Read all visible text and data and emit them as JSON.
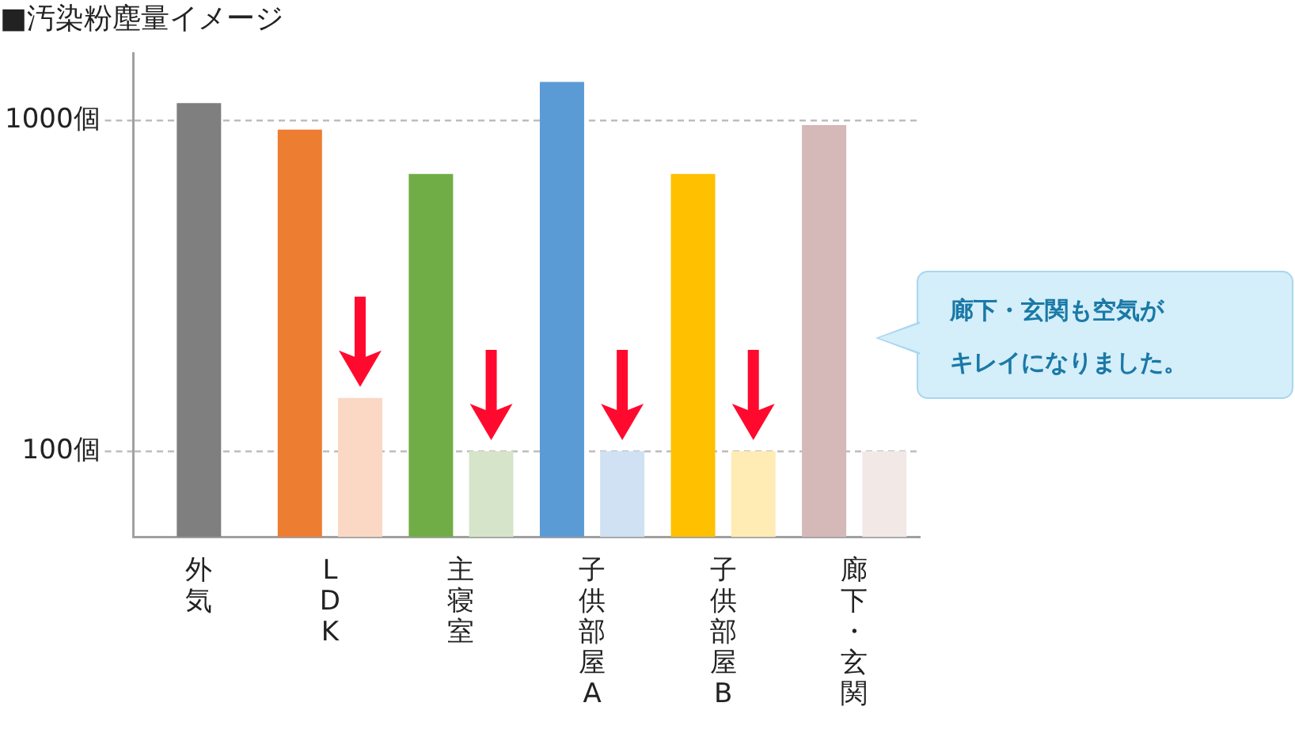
{
  "chart_data": {
    "type": "bar",
    "title": "■汚染粉塵量イメージ",
    "categories": [
      "外気",
      "LDK",
      "主寝室",
      "子供部屋A",
      "子供部屋B",
      "廊下・玄関"
    ],
    "series": [
      {
        "colors": [
          "#7f7f7f",
          "#ed7d31",
          "#70ad47",
          "#5b9bd5",
          "#ffc000",
          "#d5b8b8"
        ],
        "values": [
          1130,
          940,
          690,
          1310,
          690,
          970
        ]
      },
      {
        "colors": [
          null,
          "#fad8c3",
          "#d6e5c9",
          "#cfe1f3",
          "#ffecb5",
          "#f2e9e7"
        ],
        "values": [
          null,
          145,
          100,
          100,
          100,
          100
        ]
      }
    ],
    "log": true,
    "ylim": [
      55,
      1600
    ],
    "yticks": [
      {
        "value": 100,
        "label": "100個"
      },
      {
        "value": 1000,
        "label": "1000個"
      }
    ],
    "grid": "y",
    "annotations": [
      "廊下・玄関も空気がキレイになりました。"
    ]
  }
}
